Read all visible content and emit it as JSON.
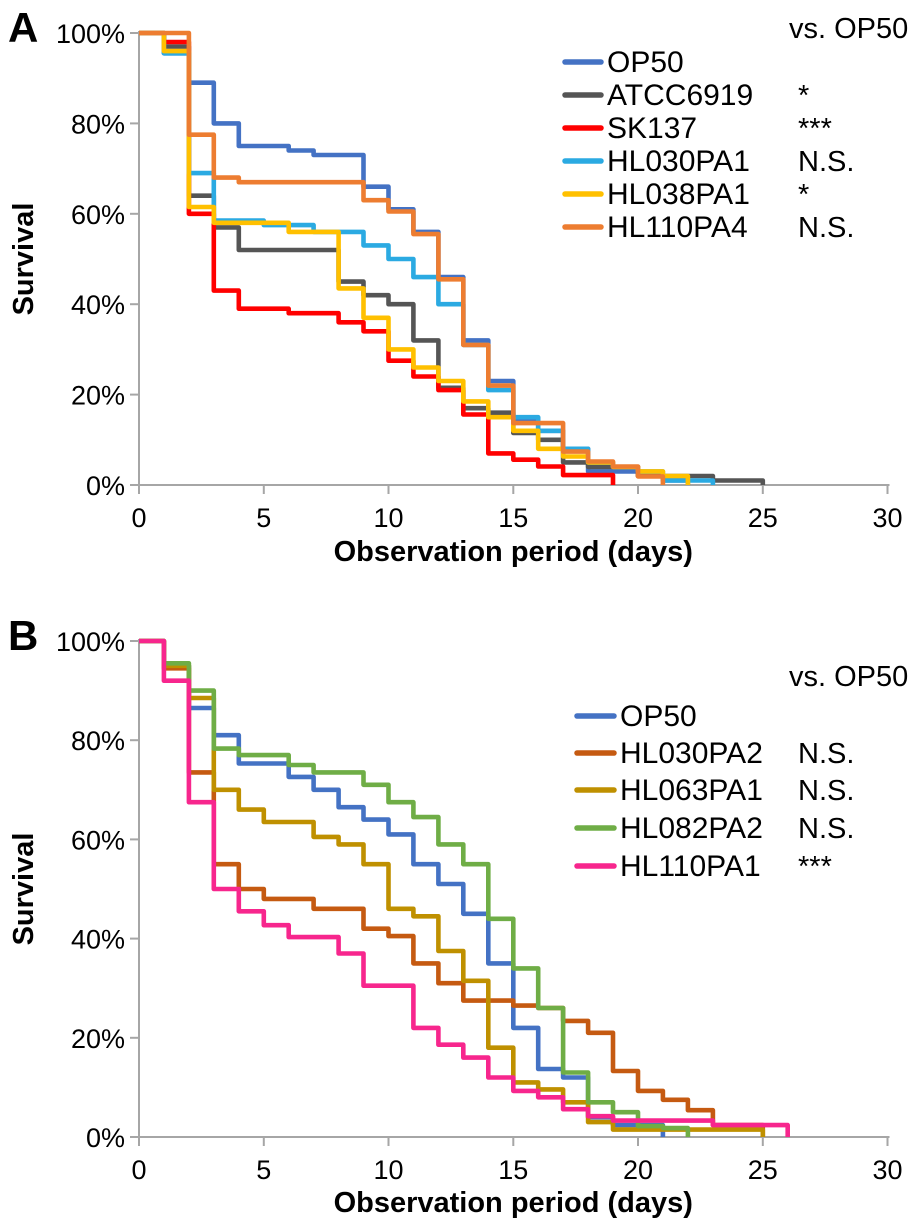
{
  "figure": {
    "y_axis_title": "Survival",
    "x_axis_title": "Observation period (days)"
  },
  "chart_data": [
    {
      "panel": "A",
      "type": "line",
      "subtype": "kaplan-meier-survival-step",
      "xlabel": "Observation period (days)",
      "ylabel": "Survival",
      "legend_note": "vs. OP50",
      "xlim": [
        0,
        30
      ],
      "ylim_percent": [
        0,
        100
      ],
      "grid": false,
      "legend_position": "upper right",
      "x_ticks": [
        0,
        5,
        10,
        15,
        20,
        25,
        30
      ],
      "y_tick_percents": [
        100,
        80,
        60,
        40,
        20,
        0
      ],
      "y_tick_labels": [
        "100%",
        "80%",
        "60%",
        "40%",
        "20%",
        "0%"
      ],
      "series": [
        {
          "name": "OP50",
          "color": "#4472C4",
          "vs_op50": "",
          "points": [
            [
              0,
              100
            ],
            [
              1,
              95.5
            ],
            [
              2,
              89
            ],
            [
              3,
              80
            ],
            [
              4,
              75
            ],
            [
              6,
              74
            ],
            [
              7,
              73
            ],
            [
              9,
              66
            ],
            [
              10,
              61
            ],
            [
              11,
              56
            ],
            [
              12,
              46
            ],
            [
              13,
              32
            ],
            [
              14,
              23
            ],
            [
              15,
              14
            ],
            [
              16,
              12
            ],
            [
              17,
              8
            ],
            [
              18,
              3
            ],
            [
              20,
              2
            ],
            [
              21,
              1
            ],
            [
              22,
              0
            ]
          ]
        },
        {
          "name": "ATCC6919",
          "color": "#555555",
          "vs_op50": "*",
          "points": [
            [
              0,
              100
            ],
            [
              1,
              97
            ],
            [
              2,
              64
            ],
            [
              3,
              57
            ],
            [
              4,
              52
            ],
            [
              8,
              45
            ],
            [
              9,
              42
            ],
            [
              10,
              40
            ],
            [
              11,
              32
            ],
            [
              12,
              21.5
            ],
            [
              13,
              17
            ],
            [
              14,
              16
            ],
            [
              15,
              11.5
            ],
            [
              16,
              10
            ],
            [
              17,
              5
            ],
            [
              18,
              4
            ],
            [
              20,
              2
            ],
            [
              23,
              1
            ],
            [
              25,
              0
            ]
          ]
        },
        {
          "name": "SK137",
          "color": "#FF0000",
          "vs_op50": "***",
          "points": [
            [
              0,
              100
            ],
            [
              1,
              98
            ],
            [
              2,
              60
            ],
            [
              3,
              43
            ],
            [
              4,
              39
            ],
            [
              6,
              38
            ],
            [
              8,
              36
            ],
            [
              9,
              34
            ],
            [
              10,
              27.5
            ],
            [
              11,
              24
            ],
            [
              12,
              21
            ],
            [
              13,
              15.6
            ],
            [
              14,
              7
            ],
            [
              15,
              5.6
            ],
            [
              16,
              4.1
            ],
            [
              17,
              2.2
            ],
            [
              19,
              0
            ]
          ]
        },
        {
          "name": "HL030PA1",
          "color": "#2BAAE2",
          "vs_op50": "N.S.",
          "points": [
            [
              0,
              100
            ],
            [
              1,
              95.5
            ],
            [
              2,
              69
            ],
            [
              3,
              58.5
            ],
            [
              5,
              57.5
            ],
            [
              7,
              56
            ],
            [
              9,
              53
            ],
            [
              10,
              50
            ],
            [
              11,
              46
            ],
            [
              12,
              40
            ],
            [
              13,
              31
            ],
            [
              14,
              21
            ],
            [
              15,
              15
            ],
            [
              16,
              12
            ],
            [
              17,
              8
            ],
            [
              18,
              5
            ],
            [
              19,
              4
            ],
            [
              20,
              3
            ],
            [
              21,
              1
            ],
            [
              23,
              0
            ]
          ]
        },
        {
          "name": "HL038PA1",
          "color": "#FFC000",
          "vs_op50": "*",
          "points": [
            [
              0,
              100
            ],
            [
              1,
              96
            ],
            [
              2,
              61.5
            ],
            [
              3,
              58
            ],
            [
              6,
              56
            ],
            [
              8,
              43.5
            ],
            [
              9,
              37
            ],
            [
              10,
              30
            ],
            [
              11,
              26
            ],
            [
              12,
              23
            ],
            [
              13,
              18.5
            ],
            [
              14,
              15
            ],
            [
              15,
              12
            ],
            [
              16,
              8
            ],
            [
              17,
              6.3
            ],
            [
              18,
              5
            ],
            [
              19,
              4
            ],
            [
              20,
              3
            ],
            [
              21,
              2
            ],
            [
              22,
              0
            ]
          ]
        },
        {
          "name": "HL110PA4",
          "color": "#ED7D31",
          "vs_op50": "N.S.",
          "points": [
            [
              0,
              100
            ],
            [
              2,
              77.5
            ],
            [
              3,
              68
            ],
            [
              4,
              67
            ],
            [
              9,
              63
            ],
            [
              10,
              60.5
            ],
            [
              11,
              55.5
            ],
            [
              12,
              45.5
            ],
            [
              13,
              31
            ],
            [
              14,
              22
            ],
            [
              15,
              13.7
            ],
            [
              17,
              7.4
            ],
            [
              18,
              5.2
            ],
            [
              19,
              4.1
            ],
            [
              20,
              1.9
            ],
            [
              21,
              0
            ]
          ]
        }
      ]
    },
    {
      "panel": "B",
      "type": "line",
      "subtype": "kaplan-meier-survival-step",
      "xlabel": "Observation period (days)",
      "ylabel": "Survival",
      "legend_note": "vs. OP50",
      "xlim": [
        0,
        30
      ],
      "ylim_percent": [
        0,
        100
      ],
      "grid": false,
      "legend_position": "upper right",
      "x_ticks": [
        0,
        5,
        10,
        15,
        20,
        25,
        30
      ],
      "y_tick_percents": [
        100,
        80,
        60,
        40,
        20,
        0
      ],
      "y_tick_labels": [
        "100%",
        "80%",
        "60%",
        "40%",
        "20%",
        "0%"
      ],
      "series": [
        {
          "name": "OP50",
          "color": "#4472C4",
          "vs_op50": "",
          "points": [
            [
              0,
              100
            ],
            [
              1,
              95
            ],
            [
              2,
              86.5
            ],
            [
              3,
              81
            ],
            [
              4,
              75.3
            ],
            [
              6,
              72.6
            ],
            [
              7,
              70
            ],
            [
              8,
              66.5
            ],
            [
              9,
              64
            ],
            [
              10,
              61
            ],
            [
              11,
              55
            ],
            [
              12,
              51
            ],
            [
              13,
              45
            ],
            [
              14,
              35
            ],
            [
              15,
              22
            ],
            [
              16,
              13.7
            ],
            [
              17,
              12
            ],
            [
              18,
              4
            ],
            [
              19,
              2.4
            ],
            [
              21,
              0
            ]
          ]
        },
        {
          "name": "HL030PA2",
          "color": "#C55A11",
          "vs_op50": "N.S.",
          "points": [
            [
              0,
              100
            ],
            [
              1,
              94.5
            ],
            [
              2,
              73.5
            ],
            [
              3,
              55
            ],
            [
              4,
              50
            ],
            [
              5,
              48
            ],
            [
              7,
              46
            ],
            [
              9,
              42
            ],
            [
              10,
              40.5
            ],
            [
              11,
              35
            ],
            [
              12,
              31
            ],
            [
              13,
              27.5
            ],
            [
              15,
              26.5
            ],
            [
              16,
              26
            ],
            [
              17,
              23.4
            ],
            [
              18,
              21
            ],
            [
              19,
              13.3
            ],
            [
              20,
              9.3
            ],
            [
              21,
              7.5
            ],
            [
              22,
              5.4
            ],
            [
              23,
              2.4
            ],
            [
              25,
              0
            ]
          ]
        },
        {
          "name": "HL063PA1",
          "color": "#BF9000",
          "vs_op50": "N.S.",
          "points": [
            [
              0,
              100
            ],
            [
              1,
              95
            ],
            [
              2,
              88.5
            ],
            [
              3,
              70
            ],
            [
              4,
              66
            ],
            [
              5,
              63.5
            ],
            [
              7,
              60.5
            ],
            [
              8,
              59
            ],
            [
              9,
              55
            ],
            [
              10,
              46
            ],
            [
              11,
              44.5
            ],
            [
              12,
              37.5
            ],
            [
              13,
              31.5
            ],
            [
              14,
              18
            ],
            [
              15,
              11
            ],
            [
              16,
              9.6
            ],
            [
              17,
              7
            ],
            [
              18,
              3
            ],
            [
              19,
              1.5
            ],
            [
              25,
              0
            ]
          ]
        },
        {
          "name": "HL082PA2",
          "color": "#6FAD46",
          "vs_op50": "N.S.",
          "points": [
            [
              0,
              100
            ],
            [
              1,
              95.5
            ],
            [
              2,
              90
            ],
            [
              3,
              78.3
            ],
            [
              4,
              77
            ],
            [
              6,
              75
            ],
            [
              7,
              73.5
            ],
            [
              9,
              71
            ],
            [
              10,
              67.5
            ],
            [
              11,
              64.5
            ],
            [
              12,
              59
            ],
            [
              13,
              55
            ],
            [
              14,
              44
            ],
            [
              15,
              34
            ],
            [
              16,
              26
            ],
            [
              17,
              13
            ],
            [
              18,
              7
            ],
            [
              19,
              5
            ],
            [
              20,
              2.2
            ],
            [
              21,
              1.8
            ],
            [
              22,
              0
            ]
          ]
        },
        {
          "name": "HL110PA1",
          "color": "#F7268D",
          "vs_op50": "***",
          "points": [
            [
              0,
              100
            ],
            [
              1,
              92
            ],
            [
              2,
              67.5
            ],
            [
              3,
              50
            ],
            [
              4,
              45.5
            ],
            [
              5,
              42.7
            ],
            [
              6,
              40.3
            ],
            [
              8,
              37
            ],
            [
              9,
              30.5
            ],
            [
              11,
              22
            ],
            [
              12,
              18.6
            ],
            [
              13,
              16
            ],
            [
              14,
              12
            ],
            [
              15,
              9.3
            ],
            [
              16,
              8
            ],
            [
              17,
              5.6
            ],
            [
              18,
              4.2
            ],
            [
              19,
              3.3
            ],
            [
              23,
              2.4
            ],
            [
              26,
              0
            ]
          ]
        }
      ]
    }
  ]
}
